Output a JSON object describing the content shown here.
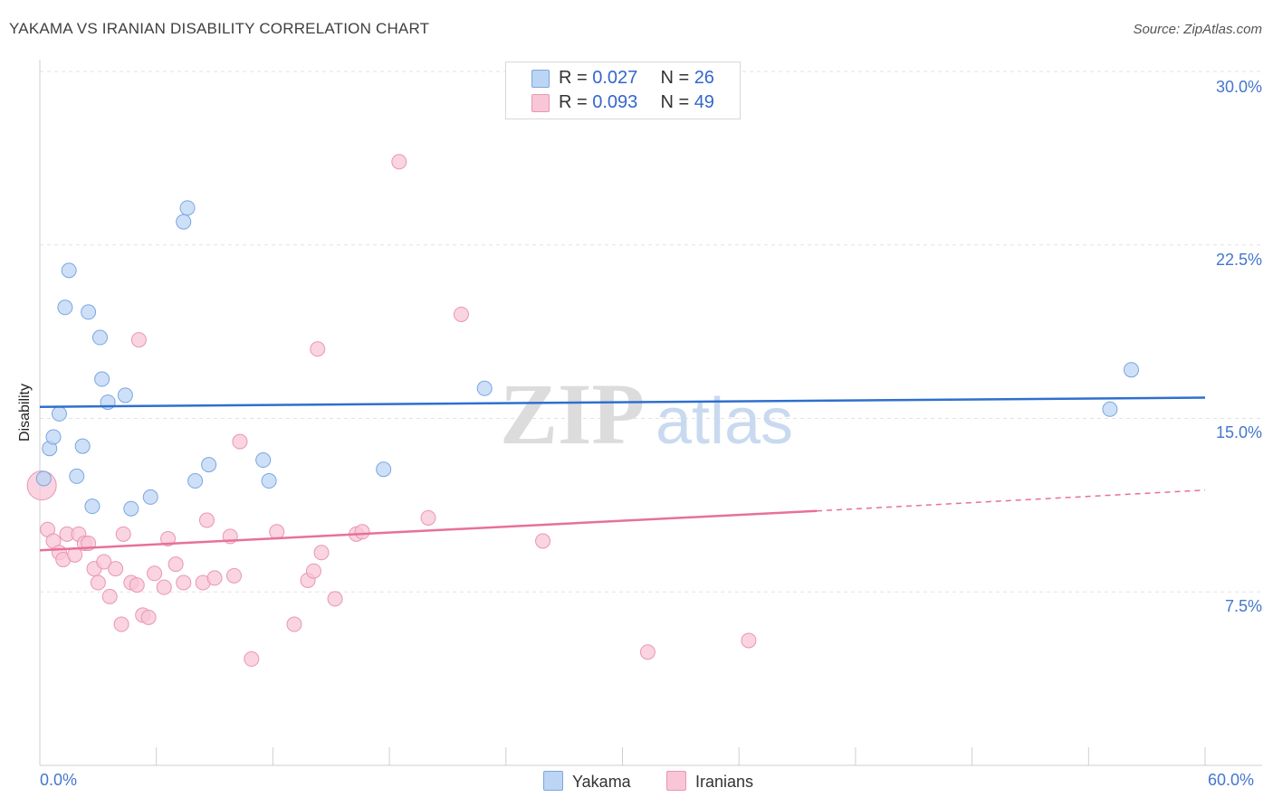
{
  "title": "YAKAMA VS IRANIAN DISABILITY CORRELATION CHART",
  "source": "Source: ZipAtlas.com",
  "watermark": {
    "zip": "ZIP",
    "atlas": "atlas"
  },
  "colors": {
    "yakama_fill": "#bcd5f5",
    "yakama_stroke": "#7aa6e0",
    "yakama_line": "#2f6fce",
    "iranians_fill": "#f8c6d6",
    "iranians_stroke": "#e996b2",
    "iranians_line": "#e8709a",
    "axis_text": "#4477cc",
    "grid": "#e2e2e2"
  },
  "stats": {
    "yakama": {
      "r_label": "R =",
      "r": "0.027",
      "n_label": "N =",
      "n": "26"
    },
    "iranians": {
      "r_label": "R =",
      "r": "0.093",
      "n_label": "N =",
      "n": "49"
    }
  },
  "legend": {
    "yakama": "Yakama",
    "iranians": "Iranians"
  },
  "chart_data": {
    "type": "scatter",
    "title": "YAKAMA VS IRANIAN DISABILITY CORRELATION CHART",
    "xlabel": "",
    "ylabel": "Disability",
    "xlim": [
      0,
      60
    ],
    "ylim": [
      0,
      30
    ],
    "x_tick_labels": [
      "0.0%",
      "60.0%"
    ],
    "y_ticks": [
      7.5,
      15.0,
      22.5,
      30.0
    ],
    "y_tick_labels": [
      "7.5%",
      "15.0%",
      "22.5%",
      "30.0%"
    ],
    "grid": "horizontal dashed",
    "series": [
      {
        "name": "Yakama",
        "R": 0.027,
        "N": 26,
        "trend": {
          "x": [
            0,
            60
          ],
          "y": [
            15.5,
            15.9
          ]
        },
        "points": [
          {
            "x": 0.2,
            "y": 12.4
          },
          {
            "x": 0.5,
            "y": 13.7
          },
          {
            "x": 0.7,
            "y": 14.2
          },
          {
            "x": 1.0,
            "y": 15.2
          },
          {
            "x": 1.3,
            "y": 19.8
          },
          {
            "x": 1.5,
            "y": 21.4
          },
          {
            "x": 1.9,
            "y": 12.5
          },
          {
            "x": 2.2,
            "y": 13.8
          },
          {
            "x": 2.5,
            "y": 19.6
          },
          {
            "x": 2.7,
            "y": 11.2
          },
          {
            "x": 3.1,
            "y": 18.5
          },
          {
            "x": 3.2,
            "y": 16.7
          },
          {
            "x": 3.5,
            "y": 15.7
          },
          {
            "x": 4.4,
            "y": 16.0
          },
          {
            "x": 4.7,
            "y": 11.1
          },
          {
            "x": 5.7,
            "y": 11.6
          },
          {
            "x": 7.4,
            "y": 23.5
          },
          {
            "x": 7.6,
            "y": 24.1
          },
          {
            "x": 8.0,
            "y": 12.3
          },
          {
            "x": 8.7,
            "y": 13.0
          },
          {
            "x": 11.5,
            "y": 13.2
          },
          {
            "x": 11.8,
            "y": 12.3
          },
          {
            "x": 17.7,
            "y": 12.8
          },
          {
            "x": 22.9,
            "y": 16.3
          },
          {
            "x": 55.1,
            "y": 15.4
          },
          {
            "x": 56.2,
            "y": 17.1
          }
        ]
      },
      {
        "name": "Iranians",
        "R": 0.093,
        "N": 49,
        "trend": {
          "x": [
            0,
            40
          ],
          "y": [
            9.3,
            11.0
          ],
          "dashed_extension": {
            "x": [
              40,
              60
            ],
            "y": [
              11.0,
              11.9
            ]
          }
        },
        "points": [
          {
            "x": 0.1,
            "y": 12.1
          },
          {
            "x": 0.4,
            "y": 10.2
          },
          {
            "x": 0.7,
            "y": 9.7
          },
          {
            "x": 1.0,
            "y": 9.2
          },
          {
            "x": 1.2,
            "y": 8.9
          },
          {
            "x": 1.4,
            "y": 10.0
          },
          {
            "x": 1.8,
            "y": 9.1
          },
          {
            "x": 2.0,
            "y": 10.0
          },
          {
            "x": 2.3,
            "y": 9.6
          },
          {
            "x": 2.5,
            "y": 9.6
          },
          {
            "x": 2.8,
            "y": 8.5
          },
          {
            "x": 3.0,
            "y": 7.9
          },
          {
            "x": 3.3,
            "y": 8.8
          },
          {
            "x": 3.6,
            "y": 7.3
          },
          {
            "x": 3.9,
            "y": 8.5
          },
          {
            "x": 4.2,
            "y": 6.1
          },
          {
            "x": 4.3,
            "y": 10.0
          },
          {
            "x": 4.7,
            "y": 7.9
          },
          {
            "x": 5.0,
            "y": 7.8
          },
          {
            "x": 5.1,
            "y": 18.4
          },
          {
            "x": 5.3,
            "y": 6.5
          },
          {
            "x": 5.6,
            "y": 6.4
          },
          {
            "x": 5.9,
            "y": 8.3
          },
          {
            "x": 6.4,
            "y": 7.7
          },
          {
            "x": 6.6,
            "y": 9.8
          },
          {
            "x": 7.0,
            "y": 8.7
          },
          {
            "x": 7.4,
            "y": 7.9
          },
          {
            "x": 8.4,
            "y": 7.9
          },
          {
            "x": 8.6,
            "y": 10.6
          },
          {
            "x": 9.0,
            "y": 8.1
          },
          {
            "x": 9.8,
            "y": 9.9
          },
          {
            "x": 10.0,
            "y": 8.2
          },
          {
            "x": 10.3,
            "y": 14.0
          },
          {
            "x": 10.9,
            "y": 4.6
          },
          {
            "x": 12.2,
            "y": 10.1
          },
          {
            "x": 13.1,
            "y": 6.1
          },
          {
            "x": 13.8,
            "y": 8.0
          },
          {
            "x": 14.1,
            "y": 8.4
          },
          {
            "x": 14.3,
            "y": 18.0
          },
          {
            "x": 14.5,
            "y": 9.2
          },
          {
            "x": 15.2,
            "y": 7.2
          },
          {
            "x": 16.3,
            "y": 10.0
          },
          {
            "x": 16.6,
            "y": 10.1
          },
          {
            "x": 18.5,
            "y": 26.1
          },
          {
            "x": 20.0,
            "y": 10.7
          },
          {
            "x": 21.7,
            "y": 19.5
          },
          {
            "x": 25.9,
            "y": 9.7
          },
          {
            "x": 31.3,
            "y": 4.9
          },
          {
            "x": 36.5,
            "y": 5.4
          }
        ]
      }
    ]
  }
}
